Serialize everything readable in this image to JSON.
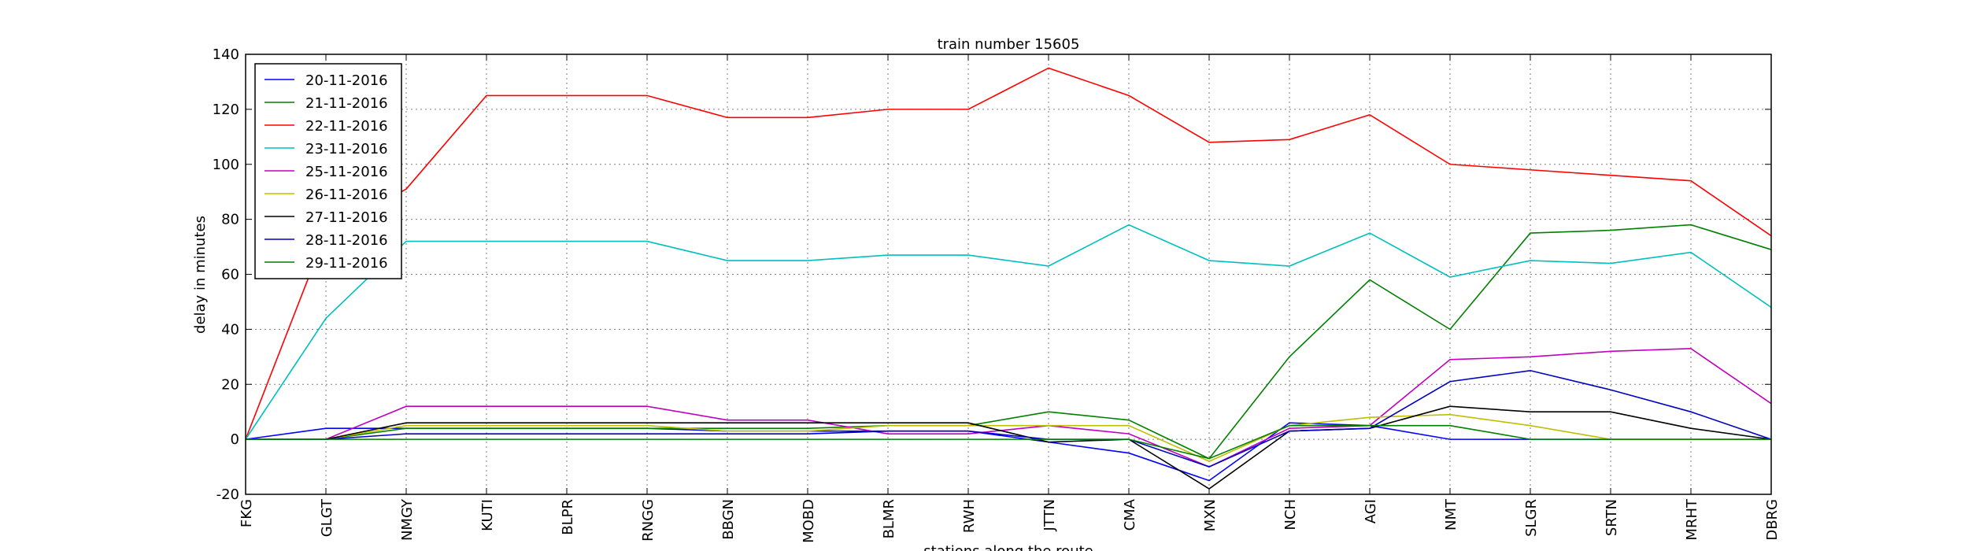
{
  "chart_data": {
    "type": "line",
    "title": "train number 15605",
    "xlabel": "stations along the route",
    "ylabel": "delay in minutes",
    "categories": [
      "FKG",
      "GLGT",
      "NMGY",
      "KUTI",
      "BLPR",
      "RNGG",
      "BBGN",
      "MOBD",
      "BLMR",
      "RWH",
      "JTTN",
      "CMA",
      "MXN",
      "NCH",
      "AGI",
      "NMT",
      "SLGR",
      "SRTN",
      "MRHT",
      "DBRG"
    ],
    "ylim": [
      -20,
      140
    ],
    "yticks": [
      -20,
      0,
      20,
      40,
      60,
      80,
      100,
      120,
      140
    ],
    "grid": true,
    "legend": "upper left",
    "series": [
      {
        "name": "20-11-2016",
        "color": "#0000ff",
        "values": [
          0,
          4,
          4,
          4,
          4,
          4,
          3,
          3,
          3,
          3,
          -1,
          -5,
          -15,
          6,
          5,
          0,
          0,
          0,
          0,
          0
        ]
      },
      {
        "name": "21-11-2016",
        "color": "#008000",
        "values": [
          0,
          0,
          4,
          4,
          4,
          4,
          4,
          4,
          5,
          5,
          10,
          7,
          -7,
          30,
          58,
          40,
          75,
          76,
          78,
          69
        ]
      },
      {
        "name": "22-11-2016",
        "color": "#ff0000",
        "values": [
          0,
          75,
          91,
          125,
          125,
          125,
          117,
          117,
          120,
          120,
          135,
          125,
          108,
          109,
          118,
          100,
          98,
          96,
          94,
          74
        ]
      },
      {
        "name": "23-11-2016",
        "color": "#00bfbf",
        "values": [
          0,
          44,
          72,
          72,
          72,
          72,
          65,
          65,
          67,
          67,
          63,
          78,
          65,
          63,
          75,
          59,
          65,
          64,
          68,
          48
        ]
      },
      {
        "name": "25-11-2016",
        "color": "#bf00bf",
        "values": [
          0,
          0,
          12,
          12,
          12,
          12,
          7,
          7,
          2,
          2,
          5,
          2,
          -10,
          4,
          5,
          29,
          30,
          32,
          33,
          13
        ]
      },
      {
        "name": "26-11-2016",
        "color": "#bfbf00",
        "values": [
          0,
          0,
          5,
          5,
          5,
          5,
          3,
          3,
          5,
          5,
          5,
          5,
          -8,
          5,
          8,
          9,
          5,
          0,
          0,
          0
        ]
      },
      {
        "name": "27-11-2016",
        "color": "#000000",
        "values": [
          0,
          0,
          6,
          6,
          6,
          6,
          6,
          6,
          6,
          6,
          -1,
          0,
          -18,
          3,
          4,
          12,
          10,
          10,
          4,
          0
        ]
      },
      {
        "name": "28-11-2016",
        "color": "#0000bf",
        "values": [
          0,
          0,
          2,
          2,
          2,
          2,
          2,
          2,
          3,
          3,
          0,
          0,
          -10,
          3,
          4,
          21,
          25,
          18,
          10,
          0
        ]
      },
      {
        "name": "29-11-2016",
        "color": "#007f00",
        "values": [
          0,
          0,
          0,
          0,
          0,
          0,
          0,
          0,
          0,
          0,
          0,
          0,
          -7,
          5,
          5,
          5,
          0,
          0,
          0,
          0
        ]
      }
    ]
  }
}
